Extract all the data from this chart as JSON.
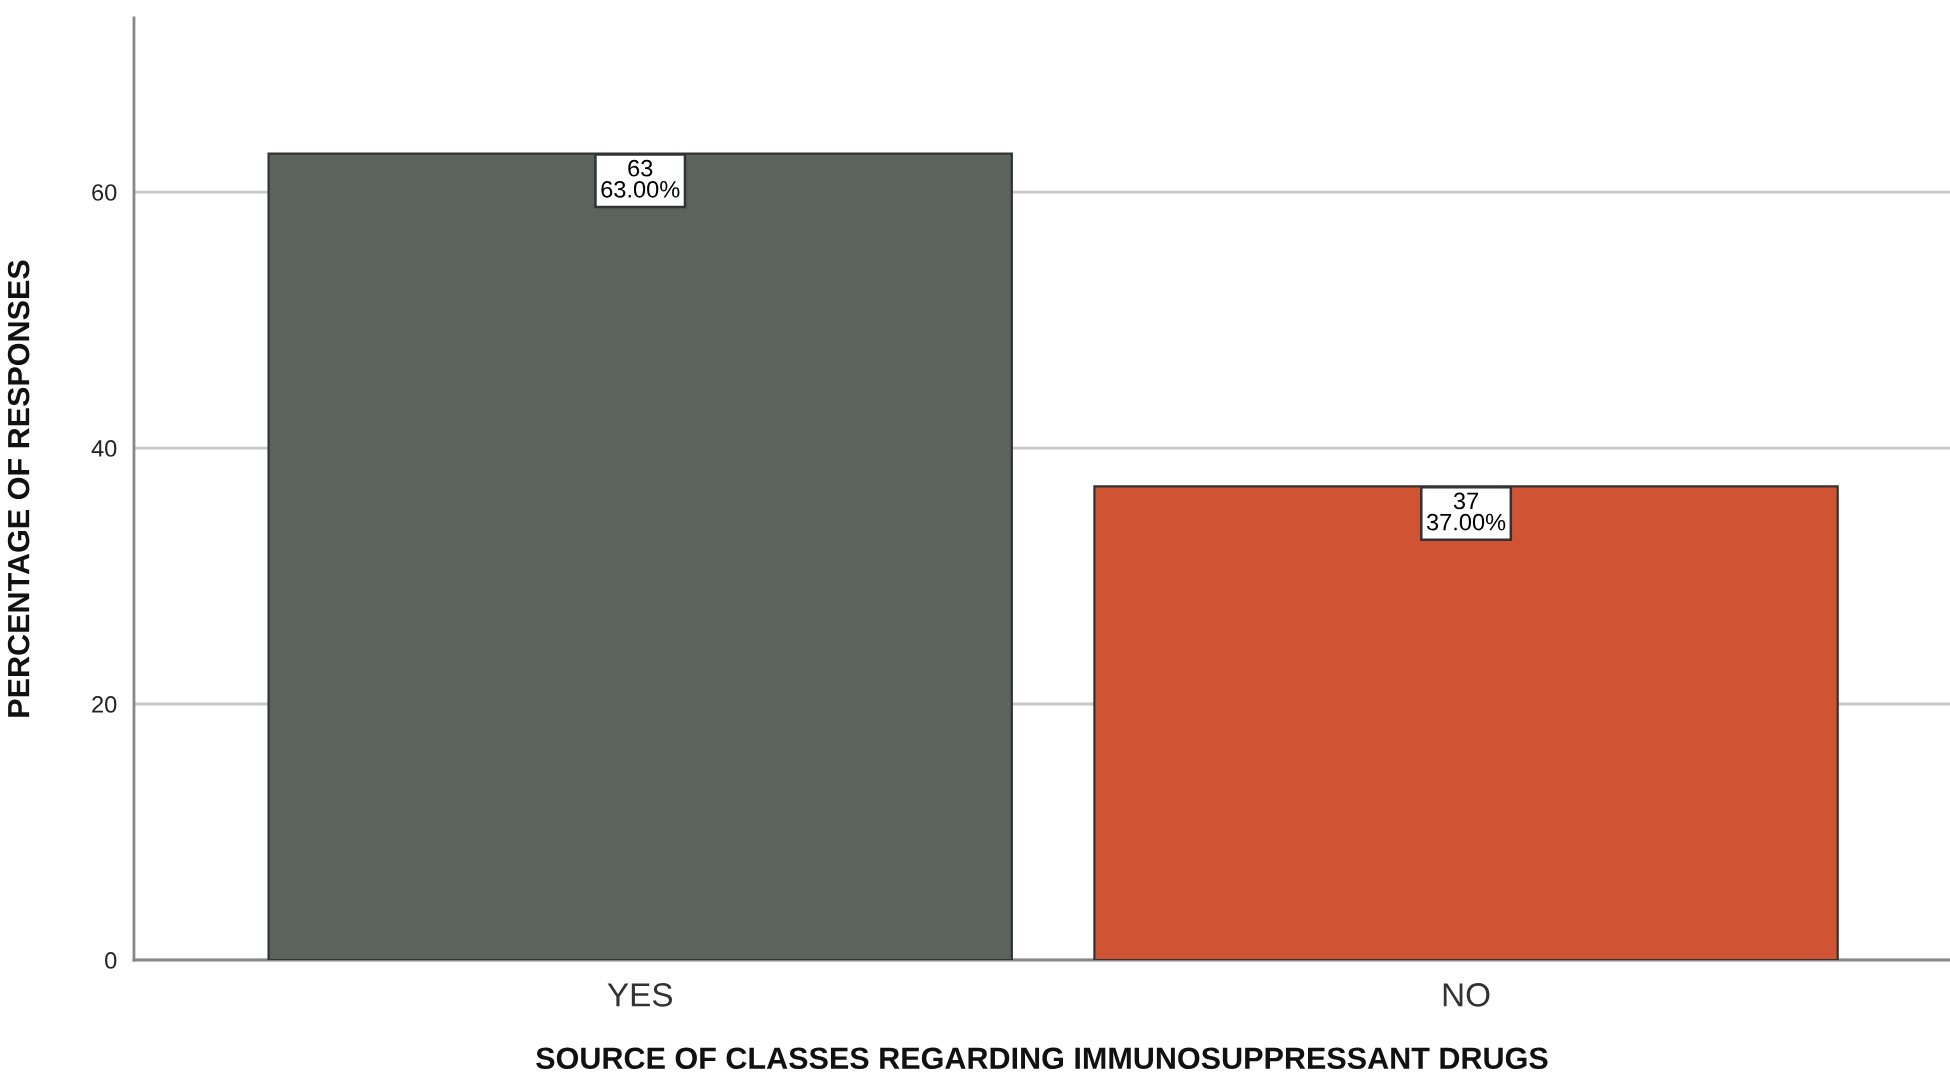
{
  "chart_data": {
    "type": "bar",
    "xlabel": "SOURCE OF CLASSES REGARDING IMMUNOSUPPRESSANT DRUGS",
    "ylabel": "PERCENTAGE OF RESPONSES",
    "categories": [
      "YES",
      "NO"
    ],
    "values": [
      63,
      37
    ],
    "colors": [
      "#5a635c",
      "#d05434"
    ],
    "value_labels": [
      "63\n63.00%",
      "37\n37.00%"
    ],
    "ylim": [
      0,
      73.6
    ],
    "yticks": [
      0,
      20,
      40,
      60
    ],
    "grid": "y",
    "legend": false
  }
}
